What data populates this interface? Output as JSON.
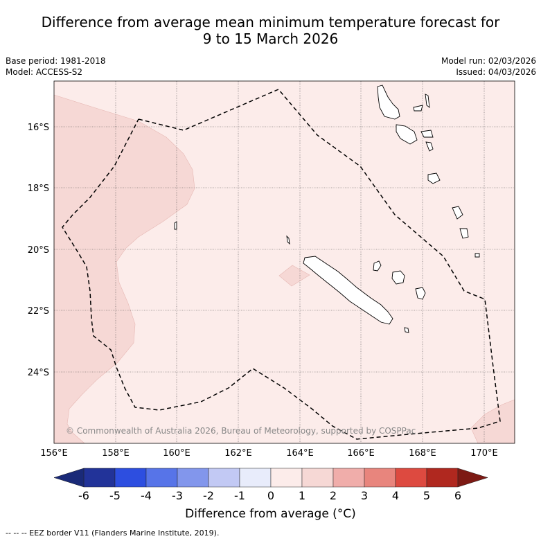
{
  "header": {
    "title_line1": "Difference from average mean minimum temperature forecast for",
    "title_line2": "9 to 15 March 2026"
  },
  "meta": {
    "base_period": "Base period: 1981-2018",
    "model": "Model: ACCESS-S2",
    "model_run": "Model run: 02/03/2026",
    "issued": "Issued: 04/03/2026"
  },
  "map": {
    "lat_labels": [
      "16°S",
      "18°S",
      "20°S",
      "22°S",
      "24°S"
    ],
    "lon_labels": [
      "156°E",
      "158°E",
      "160°E",
      "162°E",
      "164°E",
      "166°E",
      "168°E",
      "170°E"
    ],
    "copyright": "© Commonwealth of Australia 2026, Bureau of Meteorology, supported by COSPPac",
    "colors": {
      "background_0_to_1": "#fcecea",
      "anomaly_1_to_2": "#f6d8d5",
      "grid": "#555555",
      "eez": "#000000"
    }
  },
  "colorbar": {
    "ticks": [
      "-6",
      "-5",
      "-4",
      "-3",
      "-2",
      "-1",
      "0",
      "1",
      "2",
      "3",
      "4",
      "5",
      "6"
    ],
    "colors": [
      "#223399",
      "#2d4ee0",
      "#5774e8",
      "#8296ec",
      "#c2c9f4",
      "#e8ecfb",
      "#fcecea",
      "#f6d8d5",
      "#f0adaa",
      "#e8857d",
      "#dd4a40",
      "#b0281f"
    ],
    "under_color": "#1a2a78",
    "over_color": "#7d1a14",
    "label": "Difference from average (°C)"
  },
  "legend": {
    "eez_note": "--  --  -- EEZ border V11 (Flanders Marine Institute, 2019)."
  }
}
